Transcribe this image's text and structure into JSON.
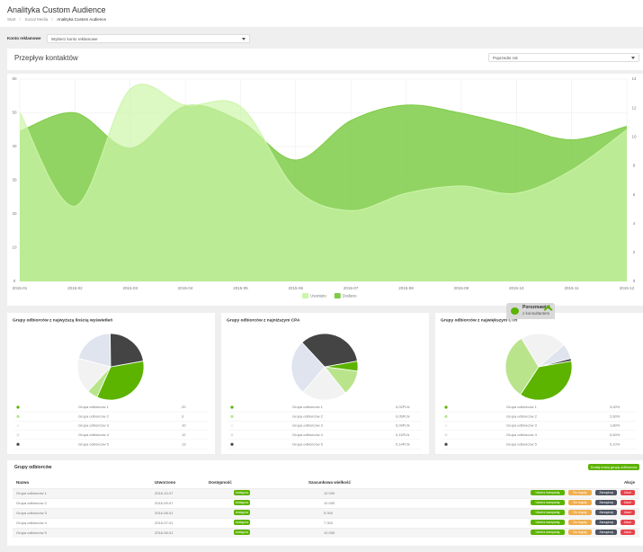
{
  "header": {
    "title": "Analityka Custom Audience",
    "breadcrumb": [
      "Start",
      "Social Media",
      "Analityka Custom Audience"
    ],
    "separator": "/"
  },
  "account": {
    "label": "Konto reklamowe",
    "placeholder": "Wybierz konto reklamowe"
  },
  "flow": {
    "title": "Przepływ kontaktów",
    "period": "Poprzedni rok"
  },
  "chart_data": [
    {
      "type": "area",
      "categories": [
        "2015-01",
        "2015-02",
        "2015-03",
        "2015-04",
        "2015-05",
        "2015-06",
        "2015-07",
        "2015-08",
        "2015-09",
        "2015-10",
        "2015-11",
        "2015-12"
      ],
      "series": [
        {
          "name": "Usunięto",
          "color": "#cdf5aa",
          "axis": "y2",
          "values": [
            11.7,
            5.2,
            13.3,
            12.2,
            12.1,
            6.4,
            4.9,
            6.1,
            6.6,
            6.1,
            7.7,
            10.5
          ]
        },
        {
          "name": "Dodano",
          "color": "#7fcc48",
          "values": [
            44.5,
            50,
            39.5,
            52,
            47.5,
            36,
            47.7,
            52.3,
            49.9,
            46,
            42,
            46
          ]
        }
      ],
      "ylim": [
        0,
        60
      ],
      "yticks": [
        0,
        10,
        20,
        30,
        40,
        50,
        60
      ],
      "y2lim": [
        0,
        14
      ],
      "y2ticks": [
        0,
        2,
        4,
        6,
        8,
        10,
        12,
        14
      ],
      "grid": true,
      "legend": "bottom"
    },
    {
      "type": "pie",
      "title": "Grupy odbiorców z najwyższą ilością wyświetleń",
      "categories": [
        "Grupa odbiorców 1",
        "Grupa odbiorców 2",
        "Grupa odbiorców 3",
        "Grupa odbiorców 4",
        "Grupa odbiorców 5"
      ],
      "values": [
        20,
        3,
        10,
        12,
        13
      ],
      "colors": [
        "#5cb300",
        "#b9e48c",
        "#f2f2f2",
        "#dfe4ee",
        "#444444"
      ]
    },
    {
      "type": "pie",
      "title": "Grupy odbiorców z najniższym CPA",
      "categories": [
        "Grupa odbiorców 1",
        "Grupa odbiorców 2",
        "Grupa odbiorców 3",
        "Grupa odbiorców 4",
        "Grupa odbiorców 5"
      ],
      "values": [
        0.02,
        0.05,
        0.09,
        0.11,
        0.14
      ],
      "value_labels": [
        "0,02PLN",
        "0,05PLN",
        "0,09PLN",
        "0,11PLN",
        "0,14PLN"
      ],
      "colors": [
        "#5cb300",
        "#b9e48c",
        "#f2f2f2",
        "#dfe4ee",
        "#444444"
      ]
    },
    {
      "type": "pie",
      "title": "Grupy odbiorców z największym CTR",
      "categories": [
        "Grupa odbiorców 1",
        "Grupa odbiorców 2",
        "Grupa odbiorców 3",
        "Grupa odbiorców 4",
        "Grupa odbiorców 5"
      ],
      "values": [
        3,
        2.6,
        1.8,
        0.6,
        0.1
      ],
      "value_labels": [
        "3,00%",
        "2,60%",
        "1,80%",
        "0,60%",
        "0,10%"
      ],
      "colors": [
        "#5cb300",
        "#b9e48c",
        "#f2f2f2",
        "#dfe4ee",
        "#444444"
      ]
    }
  ],
  "chat": {
    "title": "Porozmawiaj",
    "subtitle": "z konsultantem"
  },
  "table": {
    "title": "Grupy odbiorców",
    "add_button": "Dodaj nową grupę odbiorców",
    "columns": [
      "Nazwa",
      "Utworzono",
      "Dostępność",
      "Szacunkowa wielkość",
      "Akcje"
    ],
    "actions": [
      "Utwórz kampanię",
      "Do reguły",
      "Zarządzaj",
      "Usuń"
    ],
    "rows": [
      [
        "Grupa odbiorców 1",
        "2016-10-07",
        "dostępna",
        "10 000"
      ],
      [
        "Grupa odbiorców 2",
        "2016-09-07",
        "dostępna",
        "10 000"
      ],
      [
        "Grupa odbiorców 3",
        "2016-08-01",
        "dostępna",
        "5 000"
      ],
      [
        "Grupa odbiorców 4",
        "2016-07-01",
        "dostępna",
        "7 000"
      ],
      [
        "Grupa odbiorców 5",
        "2016-06-01",
        "dostępna",
        "10 000"
      ]
    ]
  }
}
